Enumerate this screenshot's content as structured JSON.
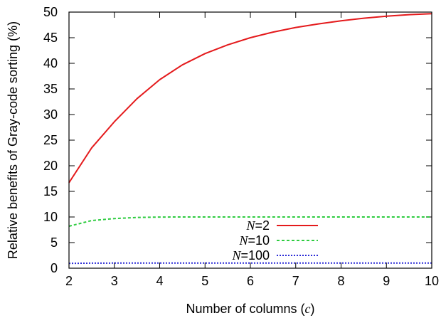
{
  "chart_data": {
    "type": "line",
    "xlabel": "Number of columns (",
    "xlabel_var": "c",
    "xlabel_close": ")",
    "ylabel": "Relative benefits of Gray-code sorting (%)",
    "xlim": [
      2,
      10
    ],
    "ylim": [
      0,
      50
    ],
    "xticks": [
      "2",
      "3",
      "4",
      "5",
      "6",
      "7",
      "8",
      "9",
      "10"
    ],
    "yticks": [
      "0",
      "5",
      "10",
      "15",
      "20",
      "25",
      "30",
      "35",
      "40",
      "45",
      "50"
    ],
    "grid": false,
    "legend_position": "bottom-center",
    "x": [
      2,
      2.5,
      3,
      3.5,
      4,
      4.5,
      5,
      5.5,
      6,
      6.5,
      7,
      7.5,
      8,
      8.5,
      9,
      9.5,
      10
    ],
    "series": [
      {
        "var": "N",
        "suffix": "=2",
        "color": "#e41a1c",
        "dash": "",
        "values": [
          16.7,
          23.5,
          28.6,
          33.1,
          36.8,
          39.7,
          41.9,
          43.6,
          45.0,
          46.1,
          47.0,
          47.7,
          48.3,
          48.8,
          49.2,
          49.5,
          49.7
        ]
      },
      {
        "var": "N",
        "suffix": "=10",
        "color": "#2ecc40",
        "dash": "4,3",
        "values": [
          8.2,
          9.3,
          9.7,
          9.9,
          9.98,
          10,
          10,
          10,
          10,
          10,
          10,
          10,
          10,
          10,
          10,
          10,
          10
        ]
      },
      {
        "var": "N",
        "suffix": "=100",
        "color": "#2a2ad6",
        "dash": "2,2",
        "values": [
          0.95,
          0.99,
          1.0,
          1.0,
          1.0,
          1.0,
          1.0,
          1.0,
          1.0,
          1.0,
          1.0,
          1.0,
          1.0,
          1.0,
          1.0,
          1.0,
          1.0
        ]
      }
    ]
  }
}
